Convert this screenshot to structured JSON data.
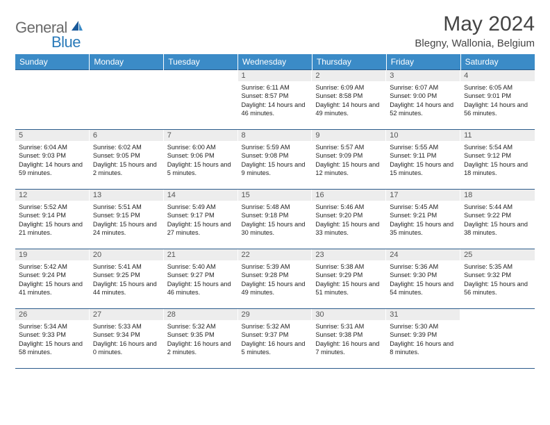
{
  "logo": {
    "text1": "General",
    "text2": "Blue"
  },
  "title": "May 2024",
  "location": "Blegny, Wallonia, Belgium",
  "colors": {
    "header_bg": "#3b8bc7",
    "header_text": "#ffffff",
    "daynum_bg": "#ededed",
    "border": "#2a5a8a",
    "logo_gray": "#6a6a6a",
    "logo_blue": "#2a7ab9"
  },
  "weekdays": [
    "Sunday",
    "Monday",
    "Tuesday",
    "Wednesday",
    "Thursday",
    "Friday",
    "Saturday"
  ],
  "weeks": [
    [
      null,
      null,
      null,
      {
        "n": "1",
        "sr": "6:11 AM",
        "ss": "8:57 PM",
        "dl": "14 hours and 46 minutes."
      },
      {
        "n": "2",
        "sr": "6:09 AM",
        "ss": "8:58 PM",
        "dl": "14 hours and 49 minutes."
      },
      {
        "n": "3",
        "sr": "6:07 AM",
        "ss": "9:00 PM",
        "dl": "14 hours and 52 minutes."
      },
      {
        "n": "4",
        "sr": "6:05 AM",
        "ss": "9:01 PM",
        "dl": "14 hours and 56 minutes."
      }
    ],
    [
      {
        "n": "5",
        "sr": "6:04 AM",
        "ss": "9:03 PM",
        "dl": "14 hours and 59 minutes."
      },
      {
        "n": "6",
        "sr": "6:02 AM",
        "ss": "9:05 PM",
        "dl": "15 hours and 2 minutes."
      },
      {
        "n": "7",
        "sr": "6:00 AM",
        "ss": "9:06 PM",
        "dl": "15 hours and 5 minutes."
      },
      {
        "n": "8",
        "sr": "5:59 AM",
        "ss": "9:08 PM",
        "dl": "15 hours and 9 minutes."
      },
      {
        "n": "9",
        "sr": "5:57 AM",
        "ss": "9:09 PM",
        "dl": "15 hours and 12 minutes."
      },
      {
        "n": "10",
        "sr": "5:55 AM",
        "ss": "9:11 PM",
        "dl": "15 hours and 15 minutes."
      },
      {
        "n": "11",
        "sr": "5:54 AM",
        "ss": "9:12 PM",
        "dl": "15 hours and 18 minutes."
      }
    ],
    [
      {
        "n": "12",
        "sr": "5:52 AM",
        "ss": "9:14 PM",
        "dl": "15 hours and 21 minutes."
      },
      {
        "n": "13",
        "sr": "5:51 AM",
        "ss": "9:15 PM",
        "dl": "15 hours and 24 minutes."
      },
      {
        "n": "14",
        "sr": "5:49 AM",
        "ss": "9:17 PM",
        "dl": "15 hours and 27 minutes."
      },
      {
        "n": "15",
        "sr": "5:48 AM",
        "ss": "9:18 PM",
        "dl": "15 hours and 30 minutes."
      },
      {
        "n": "16",
        "sr": "5:46 AM",
        "ss": "9:20 PM",
        "dl": "15 hours and 33 minutes."
      },
      {
        "n": "17",
        "sr": "5:45 AM",
        "ss": "9:21 PM",
        "dl": "15 hours and 35 minutes."
      },
      {
        "n": "18",
        "sr": "5:44 AM",
        "ss": "9:22 PM",
        "dl": "15 hours and 38 minutes."
      }
    ],
    [
      {
        "n": "19",
        "sr": "5:42 AM",
        "ss": "9:24 PM",
        "dl": "15 hours and 41 minutes."
      },
      {
        "n": "20",
        "sr": "5:41 AM",
        "ss": "9:25 PM",
        "dl": "15 hours and 44 minutes."
      },
      {
        "n": "21",
        "sr": "5:40 AM",
        "ss": "9:27 PM",
        "dl": "15 hours and 46 minutes."
      },
      {
        "n": "22",
        "sr": "5:39 AM",
        "ss": "9:28 PM",
        "dl": "15 hours and 49 minutes."
      },
      {
        "n": "23",
        "sr": "5:38 AM",
        "ss": "9:29 PM",
        "dl": "15 hours and 51 minutes."
      },
      {
        "n": "24",
        "sr": "5:36 AM",
        "ss": "9:30 PM",
        "dl": "15 hours and 54 minutes."
      },
      {
        "n": "25",
        "sr": "5:35 AM",
        "ss": "9:32 PM",
        "dl": "15 hours and 56 minutes."
      }
    ],
    [
      {
        "n": "26",
        "sr": "5:34 AM",
        "ss": "9:33 PM",
        "dl": "15 hours and 58 minutes."
      },
      {
        "n": "27",
        "sr": "5:33 AM",
        "ss": "9:34 PM",
        "dl": "16 hours and 0 minutes."
      },
      {
        "n": "28",
        "sr": "5:32 AM",
        "ss": "9:35 PM",
        "dl": "16 hours and 2 minutes."
      },
      {
        "n": "29",
        "sr": "5:32 AM",
        "ss": "9:37 PM",
        "dl": "16 hours and 5 minutes."
      },
      {
        "n": "30",
        "sr": "5:31 AM",
        "ss": "9:38 PM",
        "dl": "16 hours and 7 minutes."
      },
      {
        "n": "31",
        "sr": "5:30 AM",
        "ss": "9:39 PM",
        "dl": "16 hours and 8 minutes."
      },
      null
    ]
  ],
  "labels": {
    "sunrise": "Sunrise: ",
    "sunset": "Sunset: ",
    "daylight": "Daylight: "
  }
}
